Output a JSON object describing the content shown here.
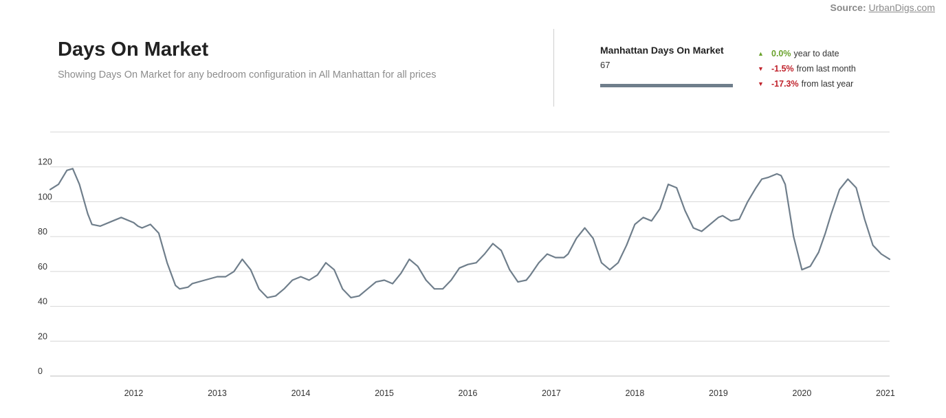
{
  "source": {
    "label": "Source:",
    "link_text": "UrbanDigs.com"
  },
  "header": {
    "title": "Days On Market",
    "subtitle": "Showing Days On Market for any bedroom configuration in All Manhattan for all prices"
  },
  "summary": {
    "title": "Manhattan Days On Market",
    "value": "67",
    "stats": [
      {
        "arrow": "▲",
        "pct": "0.0%",
        "label": "year to date",
        "direction": "up"
      },
      {
        "arrow": "▼",
        "pct": "-1.5%",
        "label": "from last month",
        "direction": "down"
      },
      {
        "arrow": "▼",
        "pct": "-17.3%",
        "label": "from last year",
        "direction": "down"
      }
    ]
  },
  "colors": {
    "line": "#6f7e8b",
    "grid": "#d6d6d6",
    "up": "#6aa22c",
    "down": "#c0232c"
  },
  "chart_data": {
    "type": "line",
    "title": "",
    "xlabel": "",
    "ylabel": "",
    "ylim": [
      0,
      140
    ],
    "yticks": [
      0,
      20,
      40,
      60,
      80,
      100,
      120
    ],
    "xlim": [
      2011.5,
      2021.55
    ],
    "xticks": [
      "2012",
      "2013",
      "2014",
      "2015",
      "2016",
      "2017",
      "2018",
      "2019",
      "2020",
      "2021"
    ],
    "grid": true,
    "series": [
      {
        "name": "",
        "x": [
          2011.5,
          2011.6,
          2011.7,
          2011.77,
          2011.85,
          2011.95,
          2012.0,
          2012.1,
          2012.25,
          2012.35,
          2012.4,
          2012.5,
          2012.55,
          2012.6,
          2012.7,
          2012.8,
          2012.9,
          2013.0,
          2013.05,
          2013.15,
          2013.2,
          2013.35,
          2013.5,
          2013.6,
          2013.7,
          2013.8,
          2013.9,
          2014.0,
          2014.1,
          2014.2,
          2014.3,
          2014.4,
          2014.5,
          2014.6,
          2014.7,
          2014.8,
          2014.9,
          2015.0,
          2015.1,
          2015.2,
          2015.3,
          2015.4,
          2015.5,
          2015.6,
          2015.7,
          2015.8,
          2015.9,
          2016.0,
          2016.1,
          2016.2,
          2016.3,
          2016.4,
          2016.5,
          2016.6,
          2016.7,
          2016.8,
          2016.9,
          2017.0,
          2017.1,
          2017.2,
          2017.25,
          2017.35,
          2017.45,
          2017.55,
          2017.65,
          2017.7,
          2017.8,
          2017.9,
          2018.0,
          2018.1,
          2018.2,
          2018.3,
          2018.4,
          2018.5,
          2018.6,
          2018.7,
          2018.8,
          2018.9,
          2019.0,
          2019.1,
          2019.2,
          2019.3,
          2019.4,
          2019.5,
          2019.55,
          2019.65,
          2019.75,
          2019.85,
          2019.95,
          2020.02,
          2020.1,
          2020.2,
          2020.25,
          2020.3,
          2020.4,
          2020.5,
          2020.6,
          2020.7,
          2020.78,
          2020.85,
          2020.95,
          2021.05,
          2021.15,
          2021.25,
          2021.35,
          2021.45,
          2021.55
        ],
        "values": [
          107,
          110,
          118,
          119,
          110,
          93,
          87,
          86,
          89,
          91,
          90,
          88,
          86,
          85,
          87,
          82,
          65,
          52,
          50,
          51,
          53,
          55,
          57,
          57,
          60,
          67,
          61,
          50,
          45,
          46,
          50,
          55,
          57,
          55,
          58,
          65,
          61,
          50,
          45,
          46,
          50,
          54,
          55,
          53,
          59,
          67,
          63,
          55,
          50,
          50,
          55,
          62,
          64,
          65,
          70,
          76,
          72,
          61,
          54,
          55,
          58,
          65,
          70,
          68,
          68,
          70,
          79,
          85,
          79,
          65,
          61,
          65,
          75,
          87,
          91,
          89,
          96,
          110,
          108,
          95,
          85,
          83,
          87,
          91,
          92,
          89,
          90,
          100,
          108,
          113,
          114,
          116,
          115,
          110,
          80,
          61,
          63,
          71,
          82,
          93,
          107,
          113,
          108,
          90,
          75,
          70,
          67
        ]
      }
    ]
  }
}
